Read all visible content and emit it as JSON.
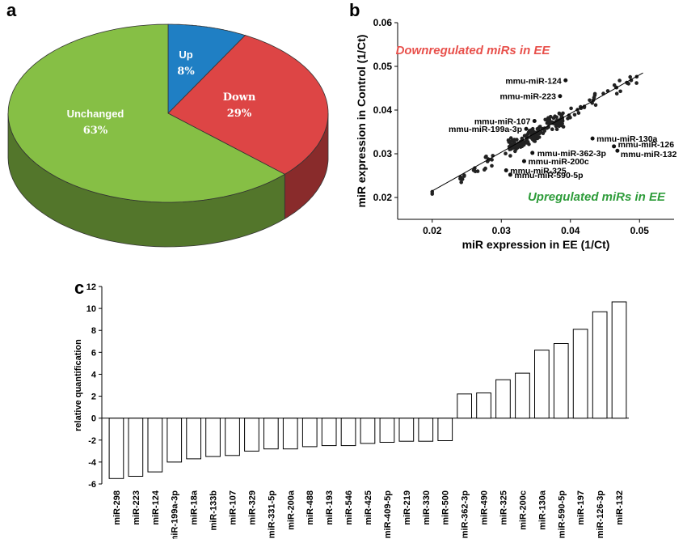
{
  "panels": {
    "a": "a",
    "b": "b",
    "c": "c"
  },
  "colors": {
    "up": "#1f7fc4",
    "down": "#dd4545",
    "unchanged": "#86bf45",
    "downText": "#e8504b",
    "upText": "#2e9c3a"
  },
  "chart_data": [
    {
      "panel": "a",
      "type": "pie",
      "slices": [
        {
          "name": "Up",
          "value": 8,
          "label": "8%"
        },
        {
          "name": "Down",
          "value": 29,
          "label": "29%"
        },
        {
          "name": "Unchanged",
          "value": 63,
          "label": "63%"
        }
      ]
    },
    {
      "panel": "b",
      "type": "scatter",
      "xlabel": "miR expression in EE (1/Ct)",
      "ylabel": "miR expression in Control (1/Ct)",
      "xlim": [
        0.015,
        0.055
      ],
      "ylim": [
        0.015,
        0.06
      ],
      "xticks": [
        "0.02",
        "0.03",
        "0.04",
        "0.05"
      ],
      "yticks": [
        "0.02",
        "0.03",
        "0.04",
        "0.05",
        "0.06"
      ],
      "region_labels": {
        "down": "Downregulated miRs in EE",
        "up": "Upregulated miRs in EE"
      },
      "fit_line": {
        "x": [
          0.02,
          0.0505
        ],
        "y": [
          0.0215,
          0.0485
        ]
      },
      "labeled_points": [
        {
          "name": "mmu-miR-124",
          "x": 0.0393,
          "y": 0.0468
        },
        {
          "name": "mmu-miR-223",
          "x": 0.0385,
          "y": 0.0432
        },
        {
          "name": "mmu-miR-107",
          "x": 0.0348,
          "y": 0.0375
        },
        {
          "name": "mmu-miR-199a-3p",
          "x": 0.0336,
          "y": 0.0357
        },
        {
          "name": "mmu-miR-130a",
          "x": 0.0432,
          "y": 0.0335
        },
        {
          "name": "mmu-miR-126",
          "x": 0.0463,
          "y": 0.0317
        },
        {
          "name": "mmu-miR-132",
          "x": 0.0468,
          "y": 0.0307
        },
        {
          "name": "mmu-miR-362-3p",
          "x": 0.0345,
          "y": 0.0302
        },
        {
          "name": "mmu-miR-200c",
          "x": 0.0333,
          "y": 0.0283
        },
        {
          "name": "mmu-miR-325",
          "x": 0.0307,
          "y": 0.0262
        },
        {
          "name": "mmu-miR-590-5p",
          "x": 0.0313,
          "y": 0.0252
        }
      ]
    },
    {
      "panel": "c",
      "type": "bar",
      "ylabel": "relative quantification",
      "ylim": [
        -6,
        12
      ],
      "yticks": [
        "-6",
        "-4",
        "-2",
        "0",
        "2",
        "4",
        "6",
        "8",
        "10",
        "12"
      ],
      "categories": [
        "miR-298",
        "miR-223",
        "miR-124",
        "miR-199a-3p",
        "miR-18a",
        "miR-133b",
        "miR-107",
        "miR-329",
        "miR-331-5p",
        "miR-200a",
        "miR-488",
        "miR-193",
        "miR-546",
        "miR-425",
        "miR-409-5p",
        "miR-219",
        "miR-330",
        "miR-500",
        "miR-362-3p",
        "miR-490",
        "miR-325",
        "miR-200c",
        "miR-130a",
        "miR-590-5p",
        "miR-197",
        "miR-126-3p",
        "miR-132"
      ],
      "values": [
        -5.5,
        -5.3,
        -4.9,
        -4.0,
        -3.7,
        -3.5,
        -3.4,
        -3.0,
        -2.8,
        -2.8,
        -2.6,
        -2.5,
        -2.5,
        -2.3,
        -2.2,
        -2.1,
        -2.1,
        -2.05,
        2.2,
        2.3,
        3.5,
        4.1,
        6.2,
        6.8,
        8.1,
        9.7,
        10.6
      ]
    }
  ]
}
